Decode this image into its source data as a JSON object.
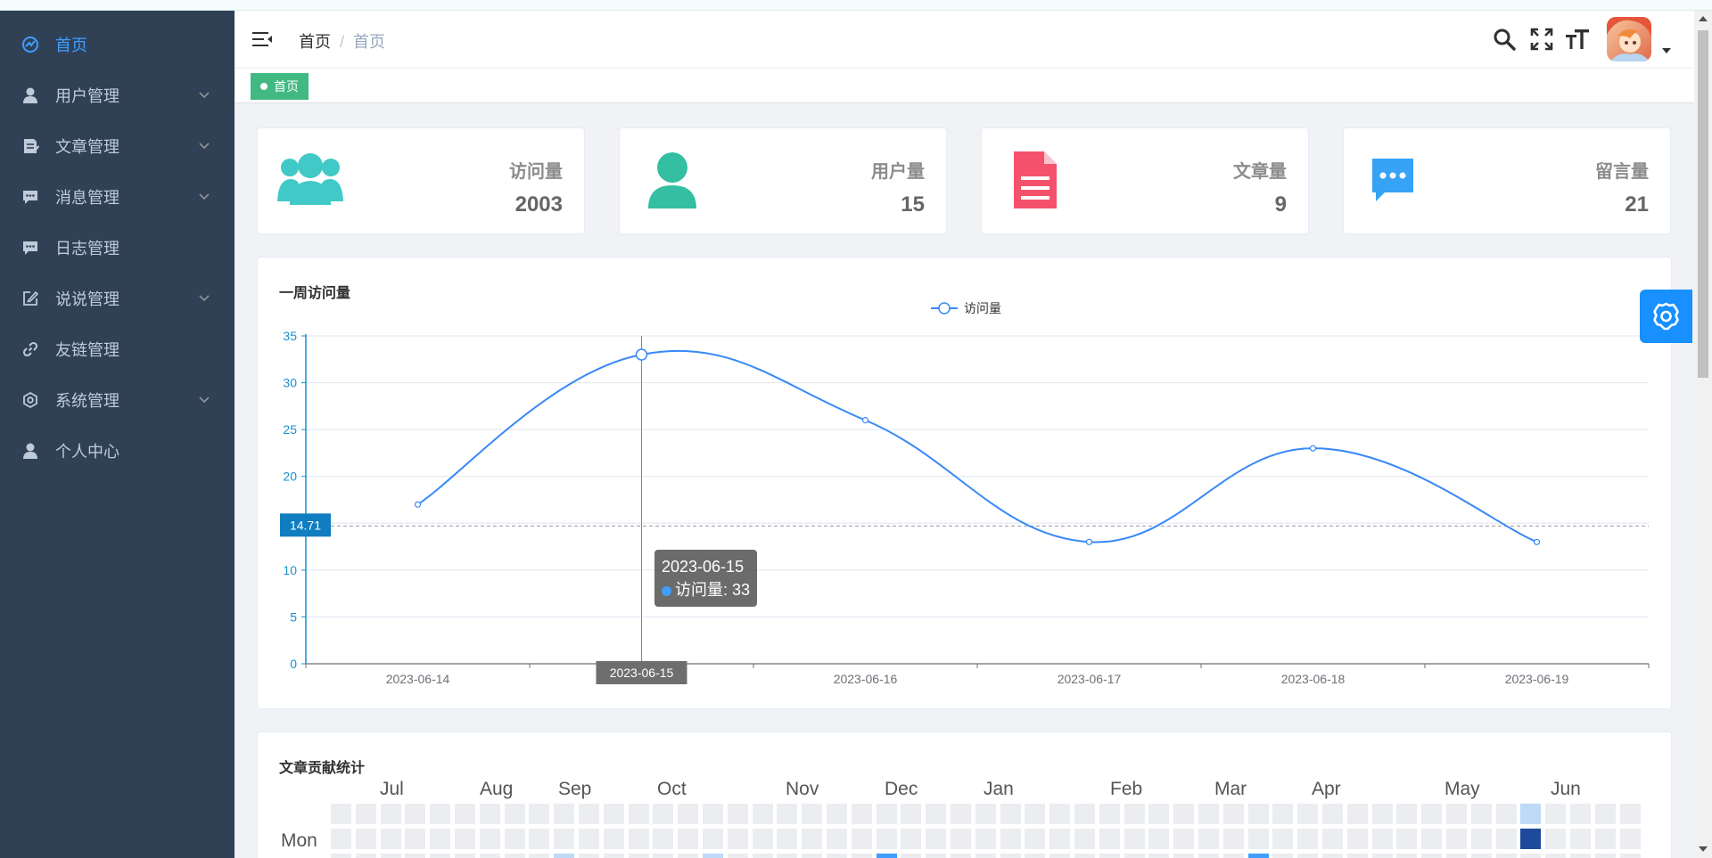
{
  "sidebar": {
    "items": [
      {
        "label": "首页",
        "icon": "dashboard-icon",
        "active": true
      },
      {
        "label": "用户管理",
        "icon": "user-icon",
        "has_children": true
      },
      {
        "label": "文章管理",
        "icon": "article-icon",
        "has_children": true
      },
      {
        "label": "消息管理",
        "icon": "message-icon",
        "has_children": true
      },
      {
        "label": "日志管理",
        "icon": "log-icon"
      },
      {
        "label": "说说管理",
        "icon": "edit-icon",
        "has_children": true
      },
      {
        "label": "友链管理",
        "icon": "link-icon"
      },
      {
        "label": "系统管理",
        "icon": "settings-icon",
        "has_children": true
      },
      {
        "label": "个人中心",
        "icon": "user-icon"
      }
    ]
  },
  "header": {
    "breadcrumb": [
      "首页",
      "首页"
    ],
    "icons": [
      "search-icon",
      "fullscreen-icon",
      "font-size-icon"
    ]
  },
  "tags": [
    {
      "label": "首页",
      "active": true
    }
  ],
  "cards": [
    {
      "title": "访问量",
      "value": "2003",
      "icon": "users-icon",
      "color": "#40c9c6"
    },
    {
      "title": "用户量",
      "value": "15",
      "icon": "user-icon",
      "color": "#34bfa3"
    },
    {
      "title": "文章量",
      "value": "9",
      "icon": "document-icon",
      "color": "#f4516c"
    },
    {
      "title": "留言量",
      "value": "21",
      "icon": "chat-icon",
      "color": "#36a3f7"
    }
  ],
  "visits_panel": {
    "title": "一周访问量"
  },
  "chart_data": {
    "type": "line",
    "categories": [
      "2023-06-14",
      "2023-06-15",
      "2023-06-16",
      "2023-06-17",
      "2023-06-18",
      "2023-06-19"
    ],
    "series": [
      {
        "name": "访问量",
        "values": [
          17,
          33,
          26,
          13,
          23,
          13
        ],
        "color": "#3888fa"
      }
    ],
    "ylim": [
      0,
      35
    ],
    "yticks": [
      0,
      5,
      10,
      15,
      20,
      25,
      30,
      35
    ],
    "smooth": true,
    "grid": true,
    "legend": "top-center",
    "pointer_value": "14.71",
    "pointer_category": "2023-06-15",
    "tooltip": {
      "title": "2023-06-15",
      "series": "访问量",
      "value": "33",
      "text": "访问量: 33"
    }
  },
  "contrib_panel": {
    "title": "文章贡献统计",
    "months": [
      "Jul",
      "Aug",
      "Sep",
      "Oct",
      "Nov",
      "Dec",
      "Jan",
      "Feb",
      "Mar",
      "Apr",
      "May",
      "Jun"
    ],
    "day_labels": [
      "Mon"
    ]
  }
}
